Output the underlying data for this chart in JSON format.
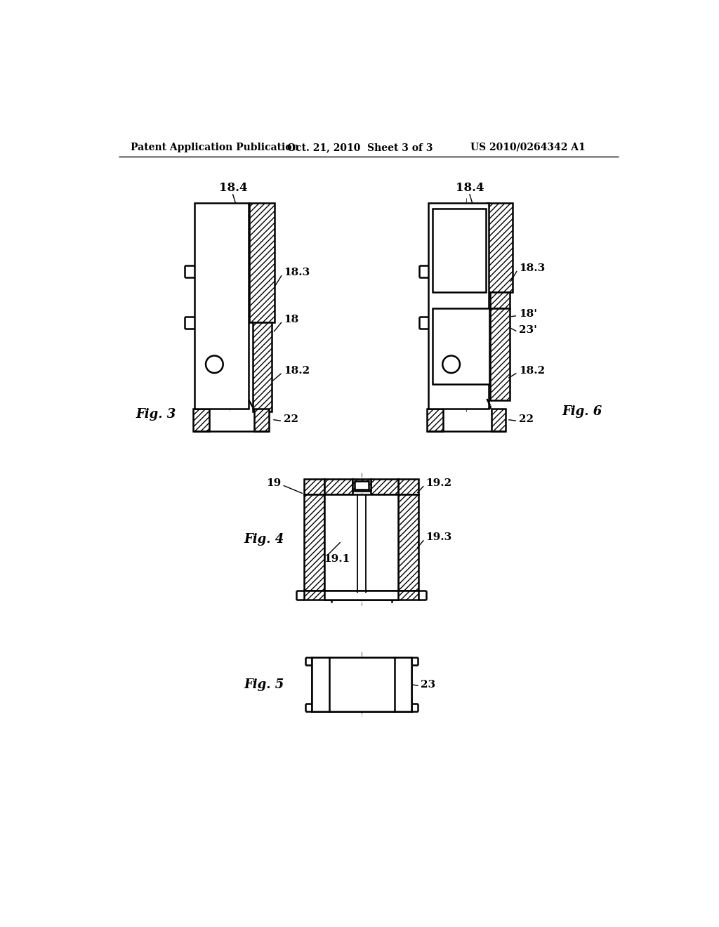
{
  "bg_color": "#ffffff",
  "header_left": "Patent Application Publication",
  "header_center": "Oct. 21, 2010  Sheet 3 of 3",
  "header_right": "US 2010/0264342 A1",
  "fig3_label": "Fig. 3",
  "fig4_label": "Fig. 4",
  "fig5_label": "Fig. 5",
  "fig6_label": "Fig. 6",
  "lw_main": 1.8,
  "lw_thin": 1.0
}
